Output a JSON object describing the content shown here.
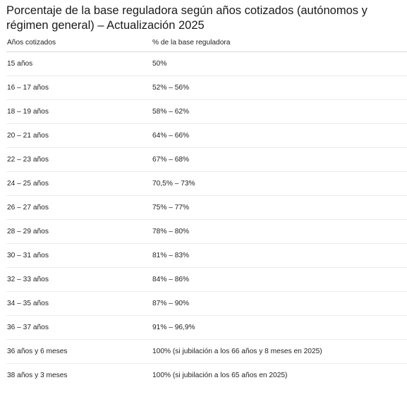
{
  "title": "Porcentaje de la base reguladora según años cotizados (autónomos y régimen general) – Actualización 2025",
  "table": {
    "headers": [
      "Años cotizados",
      "% de la base reguladora"
    ],
    "rows": [
      [
        "15 años",
        "50%"
      ],
      [
        "16 – 17 años",
        "52% – 56%"
      ],
      [
        "18 – 19 años",
        "58% – 62%"
      ],
      [
        "20 – 21 años",
        "64% – 66%"
      ],
      [
        "22 – 23 años",
        "67% – 68%"
      ],
      [
        "24 – 25 años",
        "70,5% – 73%"
      ],
      [
        "26 – 27 años",
        "75% – 77%"
      ],
      [
        "28 – 29 años",
        "78% – 80%"
      ],
      [
        "30 – 31 años",
        "81% – 83%"
      ],
      [
        "32 – 33 años",
        "84% – 86%"
      ],
      [
        "34 – 35 años",
        "87% – 90%"
      ],
      [
        "36 – 37 años",
        "91% – 96,9%"
      ],
      [
        "36 años y 6 meses",
        "100% (si jubilación a los 66 años y 8 meses en 2025)"
      ],
      [
        "38 años y 3 meses",
        "100% (si jubilación a los 65 años en 2025)"
      ]
    ]
  }
}
